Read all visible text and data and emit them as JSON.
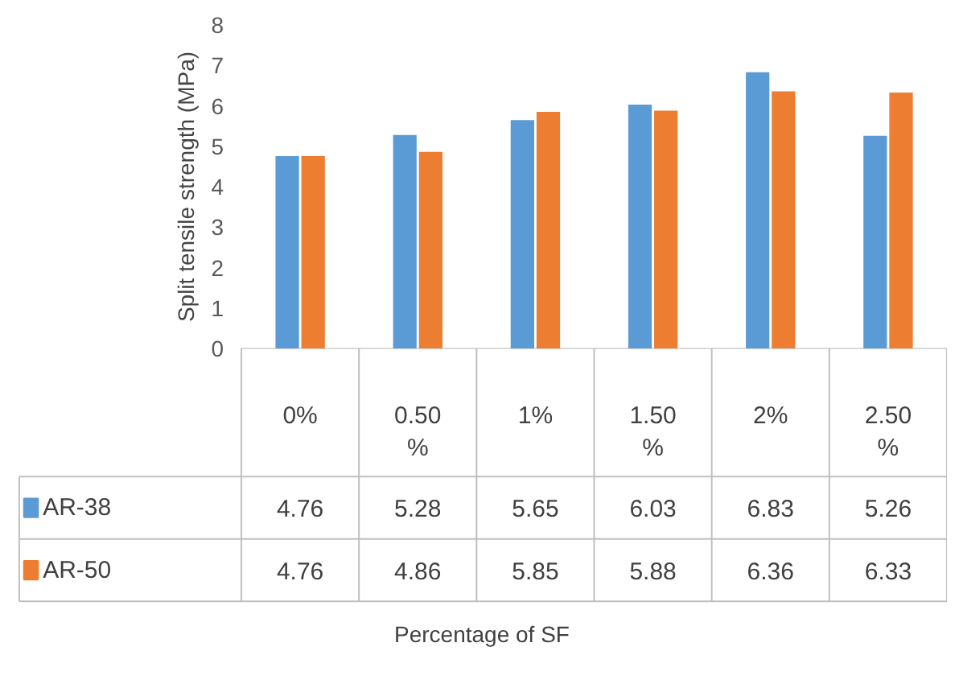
{
  "chart_data": {
    "type": "bar",
    "annotations": [
      "Percentage of SF"
    ],
    "ylabel": "Split tensile strength (MPa)",
    "categories": [
      "0%",
      "0.50 %",
      "1%",
      "1.50 %",
      "2%",
      "2.50 %"
    ],
    "series": [
      {
        "name": "AR-38",
        "color": "#5b9bd5",
        "values": [
          4.76,
          5.28,
          5.65,
          6.03,
          6.83,
          5.26
        ]
      },
      {
        "name": "AR-50",
        "color": "#ed7d31",
        "values": [
          4.76,
          4.86,
          5.85,
          5.88,
          6.36,
          6.33
        ]
      }
    ],
    "ylim": [
      0,
      8
    ],
    "yticks": [
      0,
      1,
      2,
      3,
      4,
      5,
      6,
      7,
      8
    ],
    "data_labels": true,
    "legend": "bottom",
    "grid": false
  }
}
